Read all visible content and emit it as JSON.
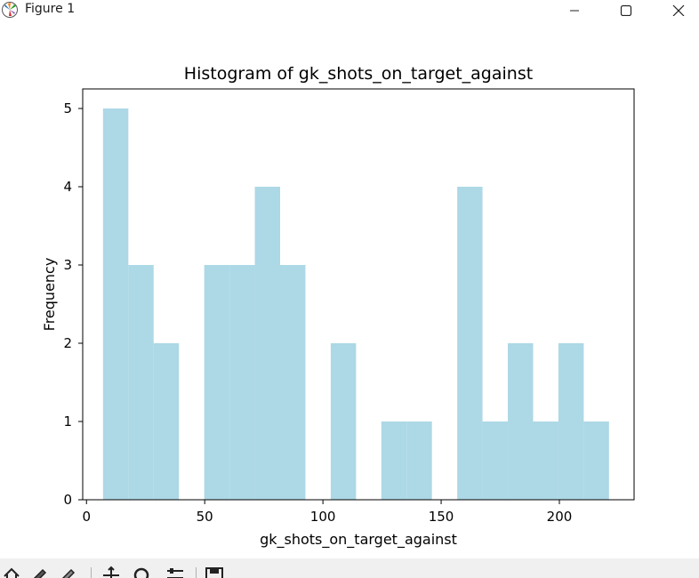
{
  "window": {
    "title": "Figure 1"
  },
  "chart_data": {
    "type": "bar",
    "title": "Histogram of gk_shots_on_target_against",
    "xlabel": "gk_shots_on_target_against",
    "ylabel": "Frequency",
    "xlim": [
      -1.6,
      231.6
    ],
    "ylim": [
      0,
      5.25
    ],
    "xticks": [
      0,
      50,
      100,
      150,
      200
    ],
    "yticks": [
      0,
      1,
      2,
      3,
      4,
      5
    ],
    "bin_edges": [
      7,
      17.7,
      28.4,
      39.1,
      49.8,
      60.5,
      71.2,
      81.9,
      92.6,
      103.3,
      114,
      124.7,
      135.4,
      146.1,
      156.8,
      167.5,
      178.2,
      188.9,
      199.6,
      210.3,
      221
    ],
    "values": [
      5,
      3,
      2,
      0,
      3,
      3,
      4,
      3,
      0,
      2,
      0,
      1,
      1,
      0,
      4,
      1,
      2,
      1,
      2,
      1
    ],
    "bar_color": "#add8e6",
    "grid": false
  },
  "toolbar": {
    "icons": [
      "home-icon",
      "back-icon",
      "forward-icon",
      "pan-icon",
      "zoom-icon",
      "configure-subplots-icon",
      "save-icon"
    ]
  }
}
